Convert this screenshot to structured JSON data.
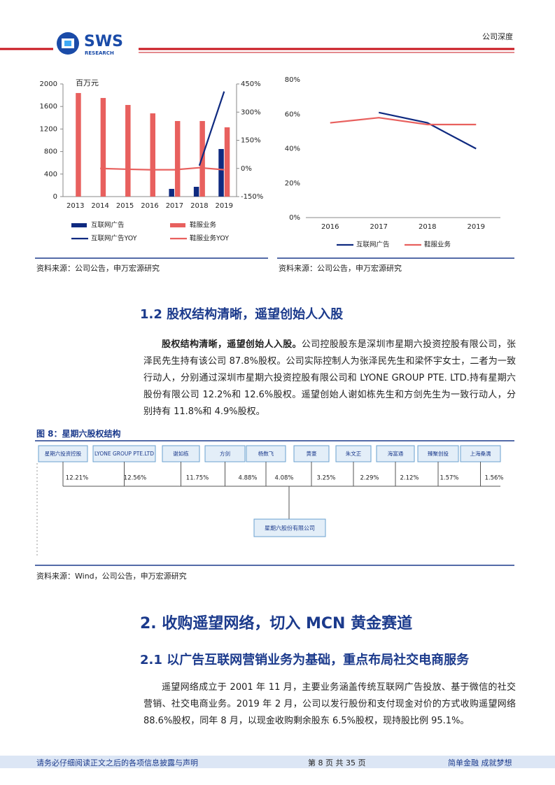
{
  "header": {
    "logo": "SWS",
    "logo_sub": "RESEARCH",
    "label": "公司深度"
  },
  "chart_data": [
    {
      "type": "bar",
      "unit": "百万元",
      "categories": [
        "2013",
        "2014",
        "2015",
        "2016",
        "2017",
        "2018",
        "2019"
      ],
      "ylim": [
        0,
        2000
      ],
      "yticks": [
        0,
        400,
        800,
        1200,
        1600,
        2000
      ],
      "y2lim": [
        -150,
        450
      ],
      "y2ticks": [
        {
          "value": -150,
          "label": "-150%"
        },
        {
          "value": 0,
          "label": "0%"
        },
        {
          "value": 150,
          "label": "150%"
        },
        {
          "value": 300,
          "label": "300%"
        },
        {
          "value": 450,
          "label": "450%"
        }
      ],
      "series": [
        {
          "name": "互联网广告",
          "color": "#0f2a80",
          "values": [
            null,
            null,
            null,
            null,
            137,
            174,
            845
          ]
        },
        {
          "name": "鞋服业务",
          "color": "#e8605e",
          "values": [
            1839,
            1751,
            1627,
            1478,
            1342,
            1342,
            1230
          ]
        },
        {
          "name": "互联网广告YOY",
          "type": "line",
          "axis": "y2",
          "color": "#0f2a80",
          "values": [
            null,
            null,
            null,
            null,
            null,
            15,
            410
          ]
        },
        {
          "name": "鞋服业务YOY",
          "type": "line",
          "axis": "y2",
          "color": "#e8605e",
          "values": [
            null,
            0,
            -4,
            -7,
            -7,
            4,
            -7
          ]
        }
      ],
      "source": "资料来源：公司公告，申万宏源研究"
    },
    {
      "type": "line",
      "categories": [
        "2016",
        "2017",
        "2018",
        "2019"
      ],
      "ylim": [
        0,
        80
      ],
      "yticks": [
        {
          "value": 0,
          "label": "0%"
        },
        {
          "value": 20,
          "label": "20%"
        },
        {
          "value": 40,
          "label": "40%"
        },
        {
          "value": 60,
          "label": "60%"
        },
        {
          "value": 80,
          "label": "80%"
        }
      ],
      "series": [
        {
          "name": "互联网广告",
          "color": "#0f2a80",
          "values": [
            null,
            61,
            55,
            40
          ]
        },
        {
          "name": "鞋服业务",
          "color": "#e8605e",
          "values": [
            55,
            58,
            54,
            54
          ]
        }
      ],
      "source": "资料来源：公司公告，申万宏源研究"
    }
  ],
  "section_1_2": {
    "heading": "1.2 股权结构清晰，遥望创始人入股",
    "lead": "股权结构清晰，遥望创始人入股。",
    "body": "公司控股股东是深圳市星期六投资控股有限公司，张泽民先生持有该公司 87.8%股权。公司实际控制人为张泽民先生和梁怀宇女士，二者为一致行动人，分别通过深圳市星期六投资控股有限公司和 LYONE GROUP PTE. LTD.持有星期六股份有限公司 12.2%和 12.6%股权。遥望创始人谢如栋先生和方剑先生为一致行动人，分别持有 11.8%和 4.9%股权。"
  },
  "figure_8": {
    "title": "图 8：星期六股权结构",
    "nodes": [
      {
        "label": "星期六投资控股",
        "share": "12.21%"
      },
      {
        "label": "LYONE GROUP PTE.LTD",
        "share": "12.56%"
      },
      {
        "label": "谢如栋",
        "share": "11.75%"
      },
      {
        "label": "方剑",
        "share": "4.88%"
      },
      {
        "label": "杨数飞",
        "share": "4.08%"
      },
      {
        "label": "黄豪",
        "share": "3.25%"
      },
      {
        "label": "朱文正",
        "share": "2.29%"
      },
      {
        "label": "海富通",
        "share": "2.12%"
      },
      {
        "label": "臻聚创投",
        "share": "1.57%"
      },
      {
        "label": "上海桑濡",
        "share": "1.56%"
      }
    ],
    "target": "星期六股份有限公司",
    "source": "资料来源：Wind，公司公告，申万宏源研究"
  },
  "section_2": {
    "heading": "2. 收购遥望网络，切入 MCN 黄金赛道",
    "subheading": "2.1 以广告互联网营销业务为基础，重点布局社交电商服务",
    "body": "遥望网络成立于 2001 年 11 月，主要业务涵盖传统互联网广告投放、基于微信的社交营销、社交电商业务。2019 年 2 月，公司以发行股份和支付现金对价的方式收购遥望网络 88.6%股权，同年 8 月，以现金收购剩余股东 6.5%股权，现持股比例 95.1%。"
  },
  "footer": {
    "left": "请务必仔细阅读正文之后的各项信息披露与声明",
    "center": "第 8 页 共 35 页",
    "right": "简单金融 成就梦想"
  }
}
